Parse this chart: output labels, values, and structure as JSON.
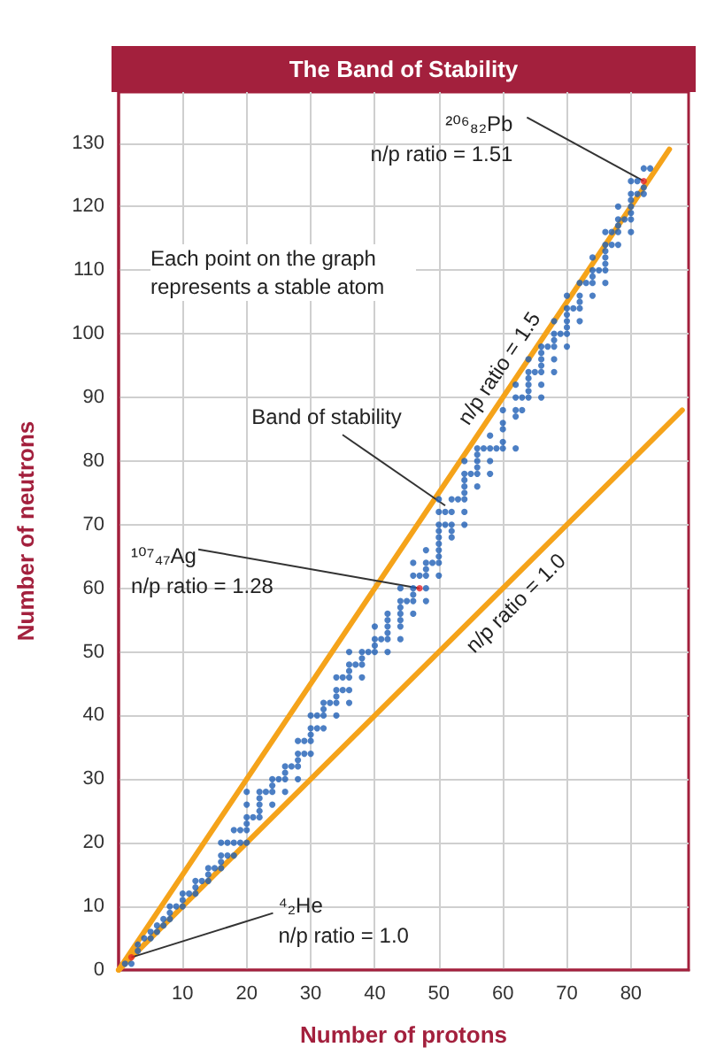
{
  "chart_data": {
    "type": "scatter",
    "title": "The Band of Stability",
    "xlabel": "Number of protons",
    "ylabel": "Number of neutrons",
    "xlim": [
      0,
      89
    ],
    "xticks": [
      10,
      20,
      30,
      40,
      50,
      60,
      70,
      80
    ],
    "ylim": [
      0,
      138
    ],
    "yticks": [
      0,
      10,
      20,
      30,
      40,
      50,
      60,
      70,
      80,
      90,
      100,
      110,
      120,
      130
    ],
    "grid": true,
    "legend": false,
    "marker": "circle",
    "annotations": [
      {
        "text": "²⁰⁶₈₂Pb\nn/p ratio = 1.51",
        "x": 82,
        "y": 124
      },
      {
        "text": "¹⁰⁷₄₇Ag\nn/p ratio = 1.28",
        "x": 47,
        "y": 60
      },
      {
        "text": "⁴₂He\nn/p ratio = 1.0",
        "x": 2,
        "y": 2
      },
      {
        "text": "Band of stability",
        "x": 51,
        "y": 73
      },
      "Each point on the graph represents a stable atom"
    ],
    "series": [
      {
        "type": "line",
        "name": "n/p ratio = 1.5",
        "color": "#f5a31a",
        "marker": "none",
        "x": [
          0,
          86
        ],
        "values": [
          0,
          129
        ]
      },
      {
        "type": "line",
        "name": "n/p ratio = 1.0",
        "color": "#f5a31a",
        "marker": "none",
        "x": [
          0,
          88
        ],
        "values": [
          0,
          88
        ]
      },
      {
        "color": "#1f5fb5",
        "x": [
          1,
          2,
          3,
          3,
          4,
          5,
          5,
          6,
          6,
          7,
          7,
          8,
          8,
          8,
          9,
          10,
          10,
          10,
          11,
          12,
          12,
          12,
          13,
          14,
          14,
          14,
          15,
          16,
          16,
          16,
          16,
          17,
          17,
          18,
          18,
          18,
          19,
          19,
          20,
          20,
          20,
          20,
          20,
          20,
          21,
          22,
          22,
          22,
          22,
          22,
          23,
          24,
          24,
          24,
          24,
          25,
          26,
          26,
          26,
          26,
          27,
          28,
          28,
          28,
          28,
          28,
          29,
          29,
          30,
          30,
          30,
          30,
          30,
          31,
          31,
          32,
          32,
          32,
          32,
          33,
          34,
          34,
          34,
          34,
          34,
          35,
          35,
          36,
          36,
          36,
          36,
          36,
          36,
          37,
          38,
          38,
          38,
          38,
          39,
          40,
          40,
          40,
          40,
          41,
          42,
          42,
          42,
          42,
          42,
          42,
          44,
          44,
          44,
          44,
          44,
          44,
          44,
          45,
          46,
          46,
          46,
          46,
          46,
          46,
          47,
          48,
          48,
          48,
          48,
          48,
          48,
          49,
          50,
          50,
          50,
          50,
          50,
          50,
          50,
          50,
          50,
          50,
          51,
          51,
          52,
          52,
          52,
          52,
          52,
          53,
          54,
          54,
          54,
          54,
          54,
          54,
          54,
          54,
          55,
          56,
          56,
          56,
          56,
          56,
          56,
          57,
          58,
          58,
          58,
          58,
          59,
          60,
          60,
          60,
          60,
          60,
          62,
          62,
          62,
          62,
          62,
          63,
          63,
          64,
          64,
          64,
          64,
          64,
          64,
          65,
          66,
          66,
          66,
          66,
          66,
          66,
          66,
          67,
          68,
          68,
          68,
          68,
          68,
          68,
          69,
          70,
          70,
          70,
          70,
          70,
          70,
          70,
          71,
          72,
          72,
          72,
          72,
          72,
          73,
          74,
          74,
          74,
          74,
          74,
          75,
          76,
          76,
          76,
          76,
          76,
          76,
          76,
          77,
          77,
          78,
          78,
          78,
          78,
          78,
          79,
          80,
          80,
          80,
          80,
          80,
          80,
          80,
          81,
          81,
          82,
          82,
          82,
          83
        ],
        "values": [
          1,
          1,
          3,
          4,
          5,
          5,
          6,
          6,
          7,
          7,
          8,
          8,
          9,
          10,
          10,
          10,
          11,
          12,
          12,
          12,
          13,
          14,
          14,
          14,
          15,
          16,
          16,
          16,
          17,
          18,
          20,
          18,
          20,
          18,
          20,
          22,
          20,
          22,
          20,
          22,
          23,
          24,
          26,
          28,
          24,
          24,
          25,
          26,
          27,
          28,
          28,
          26,
          28,
          29,
          30,
          30,
          28,
          30,
          31,
          32,
          32,
          30,
          32,
          33,
          34,
          36,
          34,
          36,
          34,
          36,
          37,
          38,
          40,
          38,
          40,
          38,
          40,
          41,
          42,
          42,
          40,
          42,
          43,
          44,
          46,
          44,
          46,
          42,
          44,
          46,
          47,
          48,
          50,
          48,
          46,
          48,
          49,
          50,
          50,
          50,
          51,
          52,
          54,
          52,
          50,
          52,
          53,
          54,
          55,
          56,
          52,
          54,
          55,
          56,
          57,
          58,
          60,
          58,
          56,
          58,
          59,
          60,
          62,
          64,
          62,
          58,
          60,
          62,
          63,
          64,
          66,
          64,
          62,
          64,
          65,
          66,
          67,
          68,
          69,
          70,
          72,
          74,
          70,
          72,
          68,
          69,
          70,
          72,
          74,
          74,
          70,
          72,
          74,
          75,
          76,
          77,
          78,
          80,
          78,
          76,
          78,
          79,
          80,
          81,
          82,
          82,
          78,
          80,
          82,
          84,
          82,
          82,
          83,
          85,
          86,
          88,
          82,
          87,
          88,
          90,
          92,
          88,
          90,
          90,
          91,
          92,
          93,
          94,
          96,
          94,
          90,
          92,
          94,
          95,
          96,
          97,
          98,
          98,
          94,
          96,
          98,
          99,
          100,
          102,
          100,
          98,
          100,
          101,
          102,
          103,
          104,
          106,
          104,
          102,
          104,
          105,
          106,
          108,
          108,
          106,
          108,
          109,
          110,
          112,
          110,
          108,
          110,
          111,
          112,
          113,
          114,
          116,
          114,
          116,
          114,
          116,
          117,
          118,
          120,
          118,
          116,
          118,
          119,
          120,
          121,
          122,
          124,
          122,
          124,
          122,
          123,
          126,
          126
        ]
      },
      {
        "color": "#e3242b",
        "x": [
          2,
          47,
          82
        ],
        "values": [
          2,
          60,
          124
        ]
      }
    ]
  }
}
